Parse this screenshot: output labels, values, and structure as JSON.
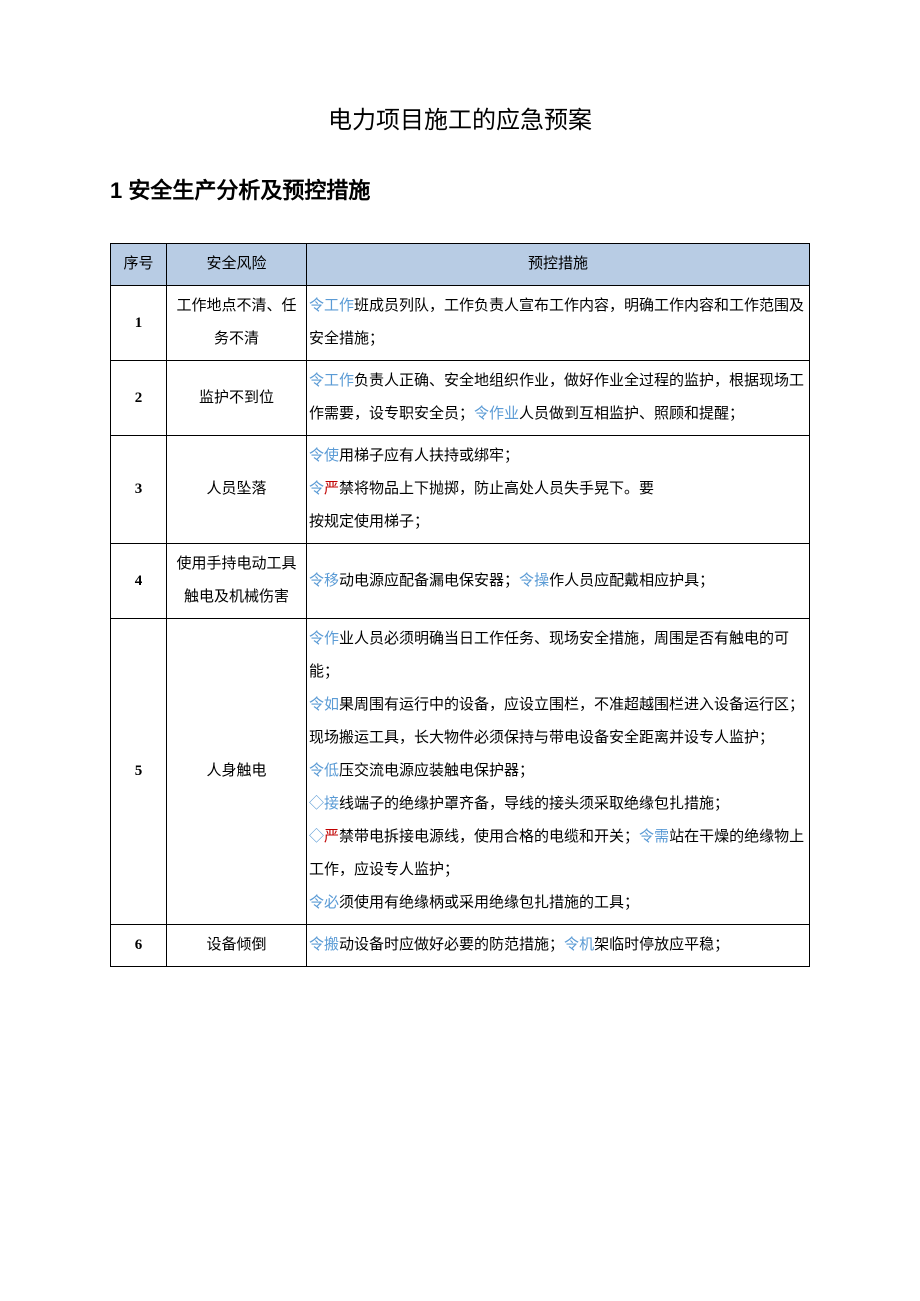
{
  "page": {
    "title": "电力项目施工的应急预案",
    "section_heading": "1 安全生产分析及预控措施"
  },
  "table": {
    "headers": {
      "seq": "序号",
      "risk": "安全风险",
      "measure": "预控措施"
    },
    "header_bg": "#b8cce4",
    "border_color": "#000000",
    "rows": [
      {
        "seq": "1",
        "risk": "工作地点不清、任务不清",
        "measure_parts": [
          {
            "t": "令",
            "cls": "text-blue"
          },
          {
            "t": "工作",
            "cls": "text-blue"
          },
          {
            "t": "班成员列队，工作负责人宣布工作内容，明确工作内容和工作范围及安全措施；",
            "cls": ""
          }
        ]
      },
      {
        "seq": "2",
        "risk": "监护不到位",
        "measure_parts": [
          {
            "t": "令",
            "cls": "text-blue"
          },
          {
            "t": "工作",
            "cls": "text-blue"
          },
          {
            "t": "负责人正确、安全地组织作业，做好作业全过程的监护，根据现场工作需要，设专职安全员；",
            "cls": ""
          },
          {
            "t": "令",
            "cls": "text-blue"
          },
          {
            "t": "作业",
            "cls": "text-blue"
          },
          {
            "t": "人员做到互相监护、照顾和提醒；",
            "cls": ""
          }
        ]
      },
      {
        "seq": "3",
        "risk": "人员坠落",
        "measure_parts": [
          {
            "t": "令",
            "cls": "text-blue"
          },
          {
            "t": "使",
            "cls": "text-blue"
          },
          {
            "t": "用梯子应有人扶持或绑牢；",
            "cls": ""
          },
          {
            "br": true
          },
          {
            "t": "令",
            "cls": "text-blue"
          },
          {
            "t": "严",
            "cls": "text-red"
          },
          {
            "t": "禁将物品上下抛掷，防止高处人员失手晃下。要",
            "cls": ""
          },
          {
            "br": true
          },
          {
            "t": "按规定使用梯子；",
            "cls": ""
          }
        ]
      },
      {
        "seq": "4",
        "risk": "使用手持电动工具触电及机械伤害",
        "measure_parts": [
          {
            "t": "令",
            "cls": "text-blue"
          },
          {
            "t": "移",
            "cls": "text-blue"
          },
          {
            "t": "动电源应配备漏电保安器；",
            "cls": ""
          },
          {
            "t": "令",
            "cls": "text-blue"
          },
          {
            "t": "操",
            "cls": "text-blue"
          },
          {
            "t": "作人员应配戴相应护具；",
            "cls": ""
          }
        ]
      },
      {
        "seq": "5",
        "risk": "人身触电",
        "measure_parts": [
          {
            "t": "令",
            "cls": "text-blue"
          },
          {
            "t": "作",
            "cls": "text-blue"
          },
          {
            "t": "业人员必须明确当日工作任务、现场安全措施，周围是否有触电的可能；",
            "cls": ""
          },
          {
            "br": true
          },
          {
            "t": "令",
            "cls": "text-blue"
          },
          {
            "t": "如",
            "cls": "text-blue"
          },
          {
            "t": "果周围有运行中的设备，应设立围栏，不准超越围栏进入设备运行区；现场搬运工具，长大物件必须保持与带电设备安全距离并设专人监护；",
            "cls": ""
          },
          {
            "br": true
          },
          {
            "t": "令",
            "cls": "text-blue"
          },
          {
            "t": "低",
            "cls": "text-blue"
          },
          {
            "t": "压交流电源应装触电保护器；",
            "cls": ""
          },
          {
            "br": true
          },
          {
            "t": "◇",
            "cls": "text-blue"
          },
          {
            "t": "接",
            "cls": "text-blue"
          },
          {
            "t": "线端子的绝缘护罩齐备，导线的接头须采取绝缘包扎措施；",
            "cls": ""
          },
          {
            "br": true
          },
          {
            "t": "◇",
            "cls": "text-blue"
          },
          {
            "t": "严",
            "cls": "text-red"
          },
          {
            "t": "禁带电拆接电源线，使用合格的电缆和开关；",
            "cls": ""
          },
          {
            "t": "令",
            "cls": "text-blue"
          },
          {
            "t": "需",
            "cls": "text-blue"
          },
          {
            "t": "站在干燥的绝缘物上工作，应设专人监护；",
            "cls": ""
          },
          {
            "br": true
          },
          {
            "t": "令",
            "cls": "text-blue"
          },
          {
            "t": "必",
            "cls": "text-blue"
          },
          {
            "t": "须使用有绝缘柄或采用绝缘包扎措施的工具；",
            "cls": ""
          }
        ]
      },
      {
        "seq": "6",
        "risk": "设备倾倒",
        "measure_parts": [
          {
            "t": "令",
            "cls": "text-blue"
          },
          {
            "t": "搬",
            "cls": "text-blue"
          },
          {
            "t": "动设备时应做好必要的防范措施；",
            "cls": ""
          },
          {
            "t": "令",
            "cls": "text-blue"
          },
          {
            "t": "机",
            "cls": "text-blue"
          },
          {
            "t": "架临时停放应平稳；",
            "cls": ""
          }
        ]
      }
    ]
  }
}
